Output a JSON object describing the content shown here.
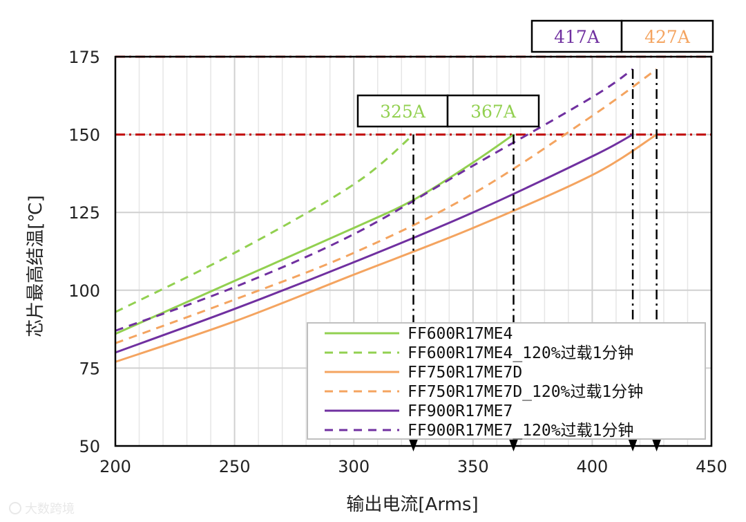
{
  "chart_data": {
    "type": "line",
    "xlabel": "输出电流[Arms]",
    "ylabel": "芯片最高结温[℃]",
    "xlim": [
      200,
      450
    ],
    "ylim": [
      50,
      175
    ],
    "x_ticks": [
      200,
      250,
      300,
      350,
      400,
      450
    ],
    "y_ticks": [
      50,
      75,
      100,
      125,
      150,
      175
    ],
    "grid": true,
    "legend_position": "bottom-right",
    "series": [
      {
        "name": "FF600R17ME4",
        "color": "#92d050",
        "dash": "solid",
        "x": [
          200,
          250,
          300,
          325,
          350,
          367
        ],
        "y": [
          86,
          103,
          120,
          129,
          141,
          150
        ]
      },
      {
        "name": "FF600R17ME4_120%过载1分钟",
        "color": "#92d050",
        "dash": "dashed",
        "x": [
          200,
          250,
          300,
          325
        ],
        "y": [
          93,
          112,
          134,
          150
        ]
      },
      {
        "name": "FF750R17ME7D",
        "color": "#f4a460",
        "dash": "solid",
        "x": [
          200,
          250,
          300,
          350,
          400,
          427
        ],
        "y": [
          77,
          90,
          105,
          120,
          137,
          150
        ]
      },
      {
        "name": "FF750R17ME7D_120%过载1分钟",
        "color": "#f4a460",
        "dash": "dashed",
        "x": [
          200,
          250,
          300,
          350,
          400,
          427
        ],
        "y": [
          83,
          97,
          112,
          131,
          156,
          171
        ]
      },
      {
        "name": "FF900R17ME7",
        "color": "#7030a0",
        "dash": "solid",
        "x": [
          200,
          250,
          300,
          350,
          400,
          417
        ],
        "y": [
          80,
          94,
          109,
          125,
          143,
          150
        ]
      },
      {
        "name": "FF900R17ME7_120%过载1分钟",
        "color": "#7030a0",
        "dash": "dashed",
        "x": [
          200,
          250,
          300,
          350,
          400,
          417
        ],
        "y": [
          87,
          101,
          118,
          140,
          162,
          171
        ]
      }
    ],
    "reference_lines": [
      {
        "y": 150,
        "color": "#c00000",
        "style": "dash-dot"
      },
      {
        "y": 175,
        "color": "#c00000",
        "style": "dash-dot"
      }
    ],
    "drop_lines": [
      {
        "x": 325,
        "y": 150
      },
      {
        "x": 367,
        "y": 150
      },
      {
        "x": 417,
        "y": 171
      },
      {
        "x": 427,
        "y": 171
      }
    ],
    "annotations": [
      {
        "text": "325A",
        "color": "#92d050",
        "row": "150"
      },
      {
        "text": "367A",
        "color": "#92d050",
        "row": "150"
      },
      {
        "text": "417A",
        "color": "#7030a0",
        "row": "175"
      },
      {
        "text": "427A",
        "color": "#f4a460",
        "row": "175"
      }
    ]
  },
  "watermark": "大数跨境"
}
